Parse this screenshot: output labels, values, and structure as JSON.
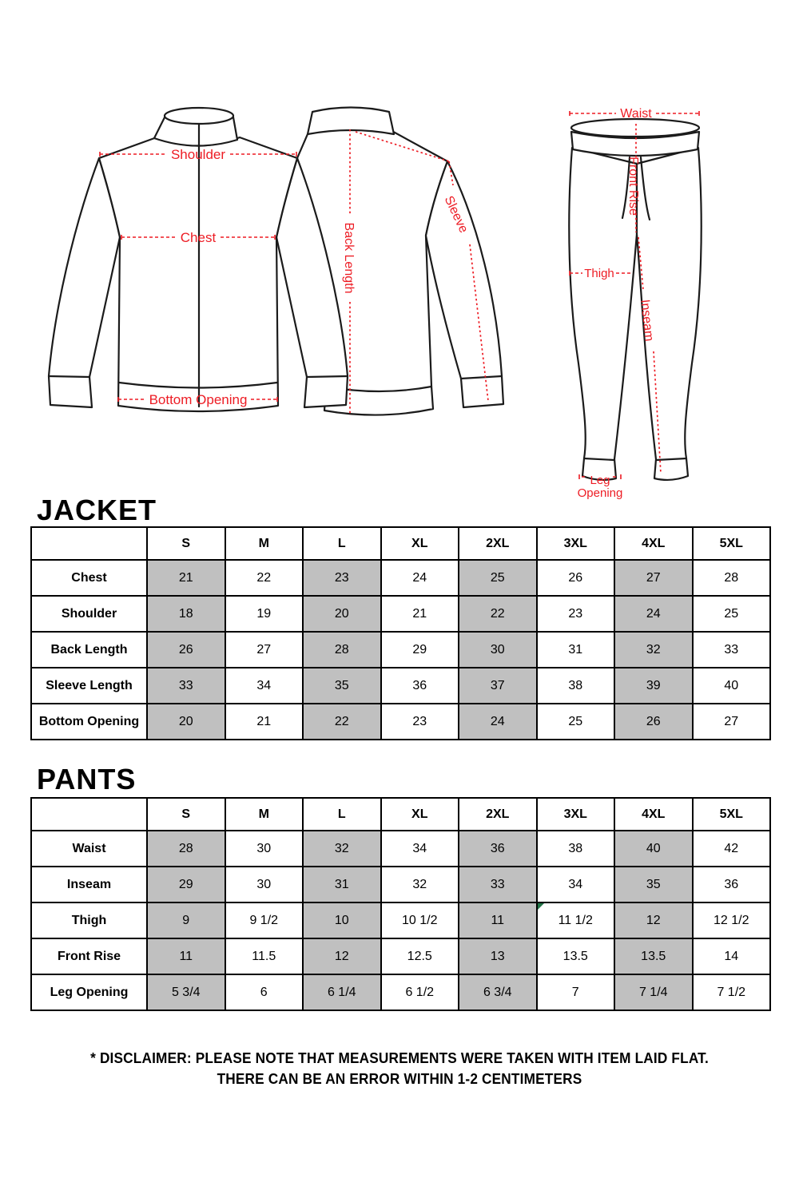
{
  "diagram": {
    "jacket_front": {
      "shoulder_label": "Shoulder",
      "chest_label": "Chest",
      "bottom_opening_label": "Bottom Opening"
    },
    "jacket_back": {
      "back_length_label": "Back Length",
      "sleeve_label": "Sleeve"
    },
    "pants_diagram": {
      "waist_label": "Waist",
      "front_rise_label": "Front Rise",
      "thigh_label": "Thigh",
      "inseam_label": "Inseam",
      "leg_opening_line1": "Leg",
      "leg_opening_line2": "Opening"
    }
  },
  "jacket": {
    "title": "JACKET",
    "table": {
      "columns": [
        "S",
        "M",
        "L",
        "XL",
        "2XL",
        "3XL",
        "4XL",
        "5XL"
      ],
      "shaded_columns": [
        "S",
        "L",
        "2XL",
        "4XL"
      ],
      "rows": [
        {
          "label": "Chest",
          "values": [
            "21",
            "22",
            "23",
            "24",
            "25",
            "26",
            "27",
            "28"
          ]
        },
        {
          "label": "Shoulder",
          "values": [
            "18",
            "19",
            "20",
            "21",
            "22",
            "23",
            "24",
            "25"
          ]
        },
        {
          "label": "Back Length",
          "values": [
            "26",
            "27",
            "28",
            "29",
            "30",
            "31",
            "32",
            "33"
          ]
        },
        {
          "label": "Sleeve Length",
          "values": [
            "33",
            "34",
            "35",
            "36",
            "37",
            "38",
            "39",
            "40"
          ]
        },
        {
          "label": "Bottom Opening",
          "values": [
            "20",
            "21",
            "22",
            "23",
            "24",
            "25",
            "26",
            "27"
          ]
        }
      ]
    }
  },
  "pants": {
    "title": "PANTS",
    "table": {
      "columns": [
        "S",
        "M",
        "L",
        "XL",
        "2XL",
        "3XL",
        "4XL",
        "5XL"
      ],
      "shaded_columns": [
        "S",
        "L",
        "2XL",
        "4XL"
      ],
      "marker_cell": {
        "row": "Thigh",
        "column": "3XL"
      },
      "rows": [
        {
          "label": "Waist",
          "values": [
            "28",
            "30",
            "32",
            "34",
            "36",
            "38",
            "40",
            "42"
          ]
        },
        {
          "label": "Inseam",
          "values": [
            "29",
            "30",
            "31",
            "32",
            "33",
            "34",
            "35",
            "36"
          ]
        },
        {
          "label": "Thigh",
          "values": [
            "9",
            "9 1/2",
            "10",
            "10 1/2",
            "11",
            "11 1/2",
            "12",
            "12 1/2"
          ]
        },
        {
          "label": "Front Rise",
          "values": [
            "11",
            "11.5",
            "12",
            "12.5",
            "13",
            "13.5",
            "13.5",
            "14"
          ]
        },
        {
          "label": "Leg Opening",
          "values": [
            "5 3/4",
            "6",
            "6 1/4",
            "6 1/2",
            "6 3/4",
            "7",
            "7 1/4",
            "7 1/2"
          ]
        }
      ]
    }
  },
  "disclaimer": {
    "line1": "* DISCLAIMER: PLEASE NOTE THAT MEASUREMENTS WERE TAKEN WITH ITEM LAID FLAT.",
    "line2": "THERE CAN BE AN ERROR WITHIN 1-2 CENTIMETERS"
  },
  "colors": {
    "annotation_red": "#ed1c24",
    "shaded_cell_gray": "#c0c0c0",
    "line_ink": "#1b1b1b",
    "marker_green": "#217346"
  }
}
